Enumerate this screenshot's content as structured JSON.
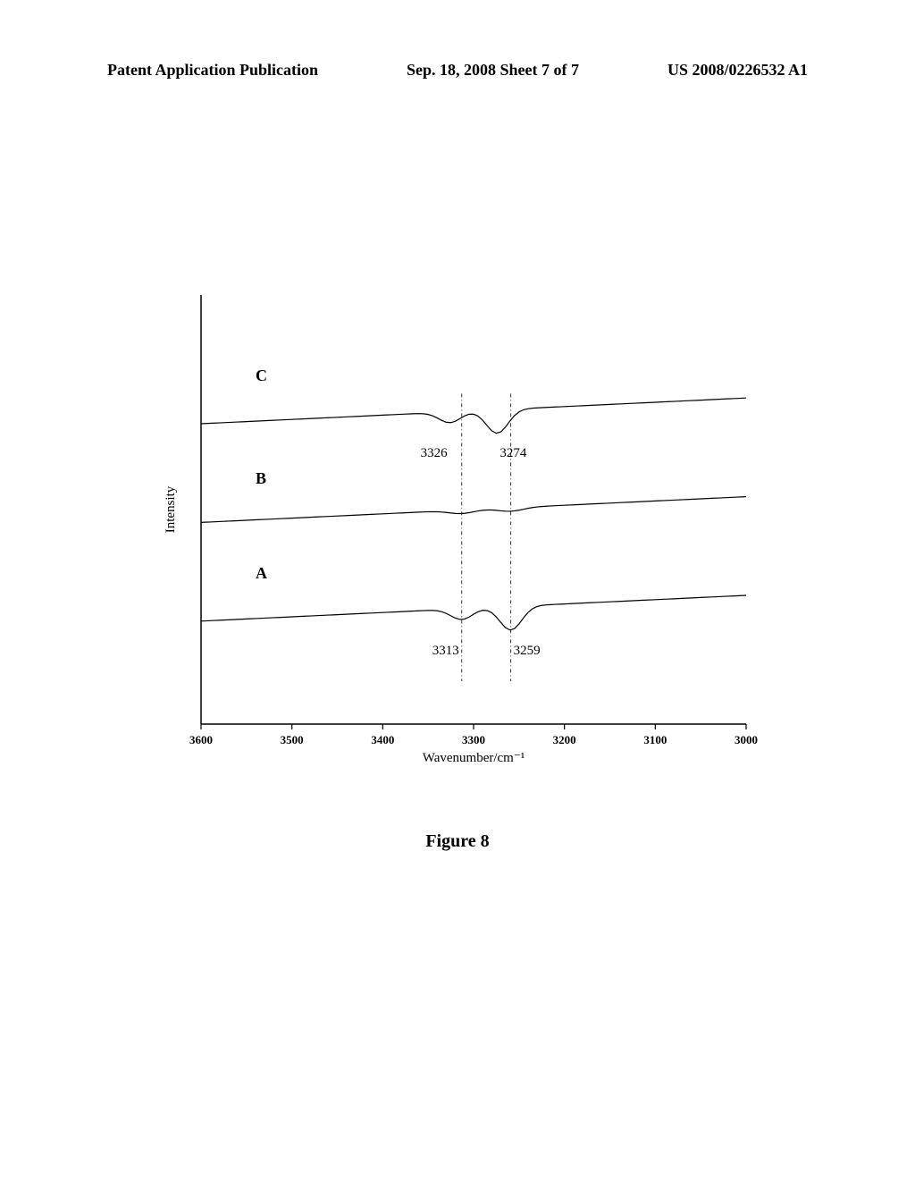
{
  "header": {
    "left": "Patent Application Publication",
    "center": "Sep. 18, 2008  Sheet 7 of 7",
    "right": "US 2008/0226532 A1"
  },
  "figure": {
    "caption": "Figure 8",
    "caption_fontsize": 20
  },
  "chart": {
    "type": "line",
    "xlabel": "Wavenumber/cm⁻¹",
    "ylabel": "Intensity",
    "xlim": [
      3600,
      3000
    ],
    "xtick_values": [
      3600,
      3500,
      3400,
      3300,
      3200,
      3100,
      3000
    ],
    "xtick_labels": [
      "3600",
      "3500",
      "3400",
      "3300",
      "3200",
      "3100",
      "3000"
    ],
    "background_color": "#ffffff",
    "axis_color": "#000000",
    "text_color": "#000000",
    "line_color": "#000000",
    "line_width": 1.2,
    "label_fontsize": 15,
    "tick_fontsize": 13,
    "series_label_fontsize": 18,
    "peak_label_fontsize": 15,
    "vertical_line_1_x": 3313,
    "vertical_line_2_x": 3259,
    "series": [
      {
        "label": "C",
        "label_x": 3540,
        "label_y": 0.8,
        "baseline_y_offset": 0.7,
        "peaks": [
          {
            "x": 3326,
            "label": "3326",
            "label_side": "left"
          },
          {
            "x": 3274,
            "label": "3274",
            "label_side": "right"
          }
        ]
      },
      {
        "label": "B",
        "label_x": 3540,
        "label_y": 0.56,
        "baseline_y_offset": 0.47,
        "peaks": []
      },
      {
        "label": "A",
        "label_x": 3540,
        "label_y": 0.34,
        "baseline_y_offset": 0.24,
        "peaks": [
          {
            "x": 3313,
            "label": "3313",
            "label_side": "left"
          },
          {
            "x": 3259,
            "label": "3259",
            "label_side": "right"
          }
        ]
      }
    ]
  }
}
